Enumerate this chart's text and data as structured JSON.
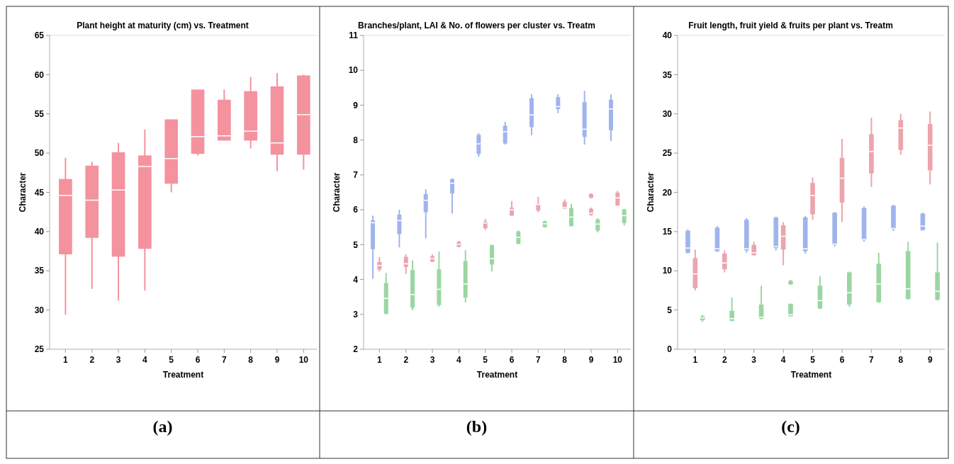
{
  "chart_data": [
    {
      "type": "box",
      "title": "Plant height at maturity (cm) vs. Treatment",
      "xlabel": "Treatment",
      "ylabel": "Character",
      "categories": [
        "1",
        "2",
        "3",
        "4",
        "5",
        "6",
        "7",
        "8",
        "9",
        "10"
      ],
      "ylim": [
        25,
        65
      ],
      "yticks": [
        25,
        30,
        35,
        40,
        45,
        50,
        55,
        60,
        65
      ],
      "annotations": [
        "(a)"
      ],
      "series": [
        {
          "color": "#f4929e",
          "boxes": [
            {
              "low": 29.4,
              "q1": 37.1,
              "median": 44.6,
              "q3": 46.7,
              "high": 49.4
            },
            {
              "low": 32.7,
              "q1": 39.2,
              "median": 44.0,
              "q3": 48.4,
              "high": 48.9
            },
            {
              "low": 31.2,
              "q1": 36.8,
              "median": 45.3,
              "q3": 50.1,
              "high": 51.3
            },
            {
              "low": 32.5,
              "q1": 37.8,
              "median": 48.3,
              "q3": 49.7,
              "high": 53.0
            },
            {
              "low": 45.0,
              "q1": 46.1,
              "median": 49.3,
              "q3": 54.3,
              "high": 54.3
            },
            {
              "low": 49.7,
              "q1": 49.9,
              "median": 52.1,
              "q3": 58.1,
              "high": 58.1
            },
            {
              "low": 51.6,
              "q1": 51.6,
              "median": 52.2,
              "q3": 56.8,
              "high": 58.1
            },
            {
              "low": 50.6,
              "q1": 51.6,
              "median": 52.8,
              "q3": 57.9,
              "high": 59.7
            },
            {
              "low": 47.7,
              "q1": 49.8,
              "median": 51.3,
              "q3": 58.5,
              "high": 60.2
            },
            {
              "low": 47.9,
              "q1": 49.8,
              "median": 54.9,
              "q3": 59.9,
              "high": 60.0
            }
          ]
        }
      ]
    },
    {
      "type": "box",
      "title": "Branches/plant, LAI & No. of flowers per cluster vs. Treatm",
      "xlabel": "Treatment",
      "ylabel": "Character",
      "categories": [
        "1",
        "2",
        "3",
        "4",
        "5",
        "6",
        "7",
        "8",
        "9",
        "10"
      ],
      "ylim": [
        2,
        11
      ],
      "yticks": [
        2,
        3,
        4,
        5,
        6,
        7,
        8,
        9,
        10,
        11
      ],
      "annotations": [
        "(b)"
      ],
      "series": [
        {
          "color": "#a0b4ec",
          "boxes": [
            {
              "low": 4.02,
              "q1": 4.87,
              "median": 5.63,
              "q3": 5.7,
              "high": 5.83
            },
            {
              "low": 4.92,
              "q1": 5.3,
              "median": 5.69,
              "q3": 5.86,
              "high": 6.0
            },
            {
              "low": 5.18,
              "q1": 5.93,
              "median": 6.27,
              "q3": 6.45,
              "high": 6.59
            },
            {
              "low": 5.89,
              "q1": 6.47,
              "median": 6.76,
              "q3": 6.88,
              "high": 6.9
            },
            {
              "low": 7.52,
              "q1": 7.6,
              "median": 7.89,
              "q3": 8.15,
              "high": 8.2
            },
            {
              "low": 7.87,
              "q1": 7.9,
              "median": 8.24,
              "q3": 8.41,
              "high": 8.52
            },
            {
              "low": 8.14,
              "q1": 8.37,
              "median": 8.72,
              "q3": 9.2,
              "high": 9.31
            },
            {
              "low": 8.77,
              "q1": 8.89,
              "median": 8.96,
              "q3": 9.23,
              "high": 9.31
            },
            {
              "low": 7.87,
              "q1": 8.09,
              "median": 8.31,
              "q3": 9.09,
              "high": 9.41
            },
            {
              "low": 7.97,
              "q1": 8.28,
              "median": 8.89,
              "q3": 9.16,
              "high": 9.31
            }
          ]
        },
        {
          "color": "#eca4ad",
          "boxes": [
            {
              "low": 4.23,
              "q1": 4.29,
              "median": 4.4,
              "q3": 4.5,
              "high": 4.64
            },
            {
              "low": 4.16,
              "q1": 4.36,
              "median": 4.45,
              "q3": 4.65,
              "high": 4.72
            },
            {
              "low": 4.51,
              "q1": 4.51,
              "median": 4.6,
              "q3": 4.67,
              "high": 4.72
            },
            {
              "low": 4.92,
              "q1": 4.94,
              "median": 5.01,
              "q3": 5.08,
              "high": 5.11
            },
            {
              "low": 5.42,
              "q1": 5.47,
              "median": 5.62,
              "q3": 5.66,
              "high": 5.74
            },
            {
              "low": 5.83,
              "q1": 5.83,
              "median": 6.0,
              "q3": 6.06,
              "high": 6.25
            },
            {
              "low": 5.93,
              "q1": 5.98,
              "median": 6.15,
              "q3": 6.17,
              "high": 6.37
            },
            {
              "low": 6.03,
              "q1": 6.03,
              "median": 6.06,
              "q3": 6.23,
              "high": 6.3
            },
            {
              "low": 5.83,
              "q1": 5.85,
              "median": 5.9,
              "q3": 6.03,
              "high": 6.06,
              "outliers": [
                6.4
              ]
            },
            {
              "low": 6.12,
              "q1": 6.12,
              "median": 6.34,
              "q3": 6.49,
              "high": 6.54
            }
          ]
        },
        {
          "color": "#9ad6a2",
          "boxes": [
            {
              "low": 3.01,
              "q1": 3.01,
              "median": 3.46,
              "q3": 3.9,
              "high": 4.19
            },
            {
              "low": 3.12,
              "q1": 3.19,
              "median": 3.57,
              "q3": 4.27,
              "high": 4.55
            },
            {
              "low": 3.22,
              "q1": 3.27,
              "median": 3.72,
              "q3": 4.29,
              "high": 4.8
            },
            {
              "low": 3.34,
              "q1": 3.48,
              "median": 3.87,
              "q3": 4.53,
              "high": 4.84
            },
            {
              "low": 4.23,
              "q1": 4.43,
              "median": 4.6,
              "q3": 4.99,
              "high": 4.99
            },
            {
              "low": 5.02,
              "q1": 5.02,
              "median": 5.21,
              "q3": 5.38,
              "high": 5.4
            },
            {
              "low": 5.49,
              "q1": 5.5,
              "median": 5.6,
              "q3": 5.67,
              "high": 5.69
            },
            {
              "low": 5.52,
              "q1": 5.53,
              "median": 5.79,
              "q3": 6.05,
              "high": 6.17
            },
            {
              "low": 5.35,
              "q1": 5.4,
              "median": 5.59,
              "q3": 5.72,
              "high": 5.76
            },
            {
              "low": 5.55,
              "q1": 5.62,
              "median": 5.83,
              "q3": 6.01,
              "high": 6.03
            }
          ]
        }
      ]
    },
    {
      "type": "box",
      "title": "Fruit length, fruit yield & fruits per plant  vs. Treatm",
      "xlabel": "Treatment",
      "ylabel": "Character",
      "categories": [
        "1",
        "2",
        "3",
        "4",
        "5",
        "6",
        "7",
        "8",
        "9"
      ],
      "ylim": [
        0,
        40
      ],
      "yticks": [
        0,
        5,
        10,
        15,
        20,
        25,
        30,
        35,
        40
      ],
      "annotations": [
        "(c)"
      ],
      "series": [
        {
          "color": "#a0b4ec",
          "boxes": [
            {
              "low": 12.2,
              "q1": 12.3,
              "median": 12.9,
              "q3": 15.1,
              "high": 15.3
            },
            {
              "low": 12.4,
              "q1": 12.5,
              "median": 12.8,
              "q3": 15.5,
              "high": 15.7
            },
            {
              "low": 12.3,
              "q1": 12.6,
              "median": 12.8,
              "q3": 16.5,
              "high": 16.7
            },
            {
              "low": 12.6,
              "q1": 12.9,
              "median": 13.1,
              "q3": 16.8,
              "high": 16.9
            },
            {
              "low": 12.2,
              "q1": 12.5,
              "median": 12.8,
              "q3": 16.8,
              "high": 17.0
            },
            {
              "low": 13.1,
              "q1": 13.3,
              "median": 13.4,
              "q3": 17.4,
              "high": 17.5
            },
            {
              "low": 13.7,
              "q1": 13.9,
              "median": 14.0,
              "q3": 18.0,
              "high": 18.2
            },
            {
              "low": 15.1,
              "q1": 15.3,
              "median": 15.4,
              "q3": 18.3,
              "high": 18.4
            },
            {
              "low": 15.1,
              "q1": 15.2,
              "median": 15.7,
              "q3": 17.3,
              "high": 17.4
            }
          ]
        },
        {
          "color": "#eca4ad",
          "boxes": [
            {
              "low": 7.5,
              "q1": 7.8,
              "median": 9.6,
              "q3": 11.6,
              "high": 12.7
            },
            {
              "low": 9.8,
              "q1": 10.2,
              "median": 11.0,
              "q3": 12.2,
              "high": 12.6
            },
            {
              "low": 11.9,
              "q1": 12.0,
              "median": 12.3,
              "q3": 13.3,
              "high": 13.7
            },
            {
              "low": 10.7,
              "q1": 12.7,
              "median": 14.4,
              "q3": 15.8,
              "high": 16.2
            },
            {
              "low": 16.5,
              "q1": 17.2,
              "median": 19.6,
              "q3": 21.2,
              "high": 21.9
            },
            {
              "low": 16.2,
              "q1": 18.7,
              "median": 21.8,
              "q3": 24.4,
              "high": 26.8
            },
            {
              "low": 20.7,
              "q1": 22.4,
              "median": 25.2,
              "q3": 27.4,
              "high": 29.5
            },
            {
              "low": 24.8,
              "q1": 25.4,
              "median": 28.2,
              "q3": 29.2,
              "high": 30.0
            },
            {
              "low": 21.0,
              "q1": 22.8,
              "median": 26.0,
              "q3": 28.7,
              "high": 30.3
            }
          ]
        },
        {
          "color": "#9ad6a2",
          "boxes": [
            {
              "low": 3.5,
              "q1": 3.7,
              "median": 4.0,
              "q3": 4.2,
              "high": 4.4
            },
            {
              "low": 3.6,
              "q1": 3.6,
              "median": 3.9,
              "q3": 4.9,
              "high": 6.6
            },
            {
              "low": 3.8,
              "q1": 3.9,
              "median": 4.1,
              "q3": 5.7,
              "high": 8.1
            },
            {
              "low": 4.2,
              "q1": 4.2,
              "median": 4.4,
              "q3": 5.8,
              "high": 5.8,
              "outliers": [
                8.5
              ]
            },
            {
              "low": 5.1,
              "q1": 5.2,
              "median": 6.2,
              "q3": 8.1,
              "high": 9.3
            },
            {
              "low": 5.4,
              "q1": 5.7,
              "median": 7.2,
              "q3": 9.8,
              "high": 9.9
            },
            {
              "low": 5.9,
              "q1": 6.0,
              "median": 8.3,
              "q3": 10.9,
              "high": 12.3
            },
            {
              "low": 6.3,
              "q1": 6.4,
              "median": 7.7,
              "q3": 12.5,
              "high": 13.7
            },
            {
              "low": 6.2,
              "q1": 6.3,
              "median": 7.4,
              "q3": 9.8,
              "high": 13.6
            }
          ]
        }
      ]
    }
  ]
}
